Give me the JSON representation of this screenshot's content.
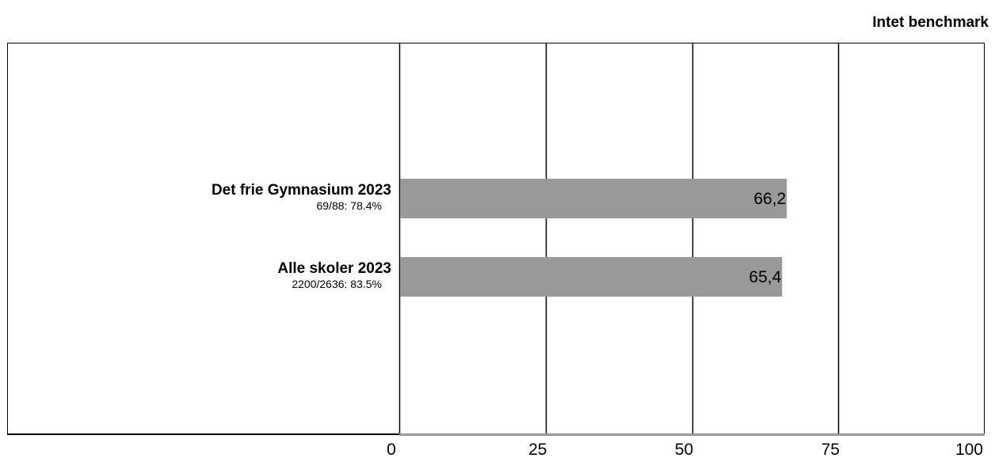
{
  "header": {
    "benchmark_label": "Intet benchmark"
  },
  "chart_data": {
    "type": "bar",
    "orientation": "horizontal",
    "categories": [
      "Det frie Gymnasium 2023",
      "Alle skoler 2023"
    ],
    "category_sublabels": [
      "69/88: 78.4%",
      "2200/2636: 83.5%"
    ],
    "values": [
      66.2,
      65.4
    ],
    "value_labels": [
      "66,2",
      "65,4"
    ],
    "xlim": [
      0,
      100
    ],
    "xticks": [
      0,
      25,
      50,
      75,
      100
    ],
    "xtick_labels": [
      "0",
      "25",
      "50",
      "75",
      "100"
    ],
    "grid": true,
    "bar_color": "#999999",
    "title": "",
    "xlabel": "",
    "ylabel": ""
  }
}
